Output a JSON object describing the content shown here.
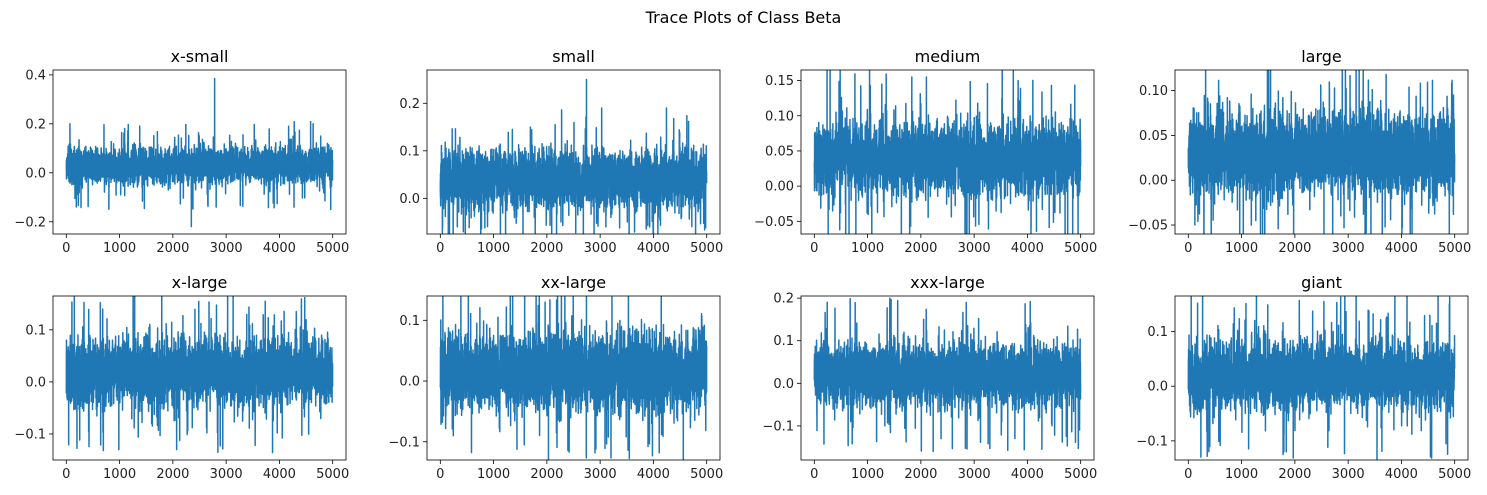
{
  "figure": {
    "title": "Trace Plots of Class Beta"
  },
  "chart_data": [
    {
      "type": "line",
      "title": "x-small",
      "color": "#1f77b4",
      "xlim": [
        -250,
        5250
      ],
      "ylim": [
        -0.25,
        0.42
      ],
      "xticks": [
        0,
        1000,
        2000,
        3000,
        4000,
        5000
      ],
      "yticks": [
        -0.2,
        0.0,
        0.2,
        0.4
      ],
      "ytick_labels": [
        "−0.2",
        "0.0",
        "0.2",
        "0.4"
      ],
      "series": [
        {
          "n": 5000,
          "center": 0.03,
          "spread": 0.035,
          "max": 0.385,
          "min": -0.22
        }
      ]
    },
    {
      "type": "line",
      "title": "small",
      "color": "#1f77b4",
      "xlim": [
        -250,
        5250
      ],
      "ylim": [
        -0.075,
        0.27
      ],
      "xticks": [
        0,
        1000,
        2000,
        3000,
        4000,
        5000
      ],
      "yticks": [
        0.0,
        0.1,
        0.2
      ],
      "ytick_labels": [
        "0.0",
        "0.1",
        "0.2"
      ],
      "series": [
        {
          "n": 5000,
          "center": 0.04,
          "spread": 0.03,
          "max": 0.25,
          "min": -0.06
        }
      ]
    },
    {
      "type": "line",
      "title": "medium",
      "color": "#1f77b4",
      "xlim": [
        -250,
        5250
      ],
      "ylim": [
        -0.068,
        0.165
      ],
      "xticks": [
        0,
        1000,
        2000,
        3000,
        4000,
        5000
      ],
      "yticks": [
        -0.05,
        0.0,
        0.05,
        0.1,
        0.15
      ],
      "ytick_labels": [
        "−0.05",
        "0.00",
        "0.05",
        "0.10",
        "0.15"
      ],
      "series": [
        {
          "n": 5000,
          "center": 0.04,
          "spread": 0.025,
          "max": 0.155,
          "min": -0.057
        }
      ]
    },
    {
      "type": "line",
      "title": "large",
      "color": "#1f77b4",
      "xlim": [
        -250,
        5250
      ],
      "ylim": [
        -0.06,
        0.123
      ],
      "xticks": [
        0,
        1000,
        2000,
        3000,
        4000,
        5000
      ],
      "yticks": [
        -0.05,
        0.0,
        0.05,
        0.1
      ],
      "ytick_labels": [
        "−0.05",
        "0.00",
        "0.05",
        "0.10"
      ],
      "series": [
        {
          "n": 5000,
          "center": 0.03,
          "spread": 0.022,
          "max": 0.118,
          "min": -0.053
        }
      ]
    },
    {
      "type": "line",
      "title": "x-large",
      "color": "#1f77b4",
      "xlim": [
        -250,
        5250
      ],
      "ylim": [
        -0.15,
        0.165
      ],
      "xticks": [
        0,
        1000,
        2000,
        3000,
        4000,
        5000
      ],
      "yticks": [
        -0.1,
        0.0,
        0.1
      ],
      "ytick_labels": [
        "−0.1",
        "0.0",
        "0.1"
      ],
      "series": [
        {
          "n": 5000,
          "center": 0.02,
          "spread": 0.03,
          "max": 0.155,
          "min": -0.135
        }
      ]
    },
    {
      "type": "line",
      "title": "xx-large",
      "color": "#1f77b4",
      "xlim": [
        -250,
        5250
      ],
      "ylim": [
        -0.13,
        0.14
      ],
      "xticks": [
        0,
        1000,
        2000,
        3000,
        4000,
        5000
      ],
      "yticks": [
        -0.1,
        0.0,
        0.1
      ],
      "ytick_labels": [
        "−0.1",
        "0.0",
        "0.1"
      ],
      "series": [
        {
          "n": 5000,
          "center": 0.015,
          "spread": 0.03,
          "max": 0.13,
          "min": -0.118
        }
      ]
    },
    {
      "type": "line",
      "title": "xxx-large",
      "color": "#1f77b4",
      "xlim": [
        -250,
        5250
      ],
      "ylim": [
        -0.18,
        0.205
      ],
      "xticks": [
        0,
        1000,
        2000,
        3000,
        4000,
        5000
      ],
      "yticks": [
        -0.1,
        0.0,
        0.1,
        0.2
      ],
      "ytick_labels": [
        "−0.1",
        "0.0",
        "0.1",
        "0.2"
      ],
      "series": [
        {
          "n": 5000,
          "center": 0.02,
          "spread": 0.035,
          "max": 0.19,
          "min": -0.16
        }
      ]
    },
    {
      "type": "line",
      "title": "giant",
      "color": "#1f77b4",
      "xlim": [
        -250,
        5250
      ],
      "ylim": [
        -0.135,
        0.165
      ],
      "xticks": [
        0,
        1000,
        2000,
        3000,
        4000,
        5000
      ],
      "yticks": [
        -0.1,
        0.0,
        0.1
      ],
      "ytick_labels": [
        "−0.1",
        "0.0",
        "0.1"
      ],
      "series": [
        {
          "n": 5000,
          "center": 0.02,
          "spread": 0.03,
          "max": 0.155,
          "min": -0.12
        }
      ]
    }
  ]
}
